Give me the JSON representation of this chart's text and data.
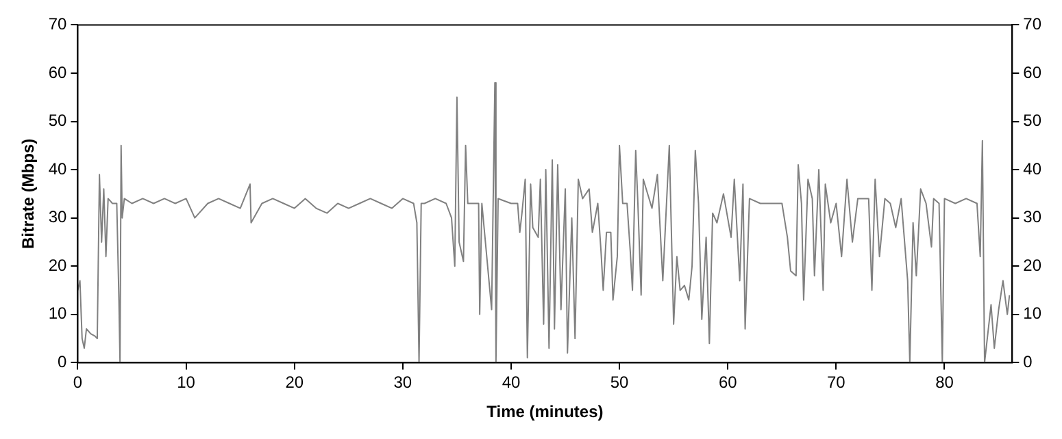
{
  "chart_data": {
    "type": "line",
    "xlabel": "Time (minutes)",
    "ylabel": "Bitrate (Mbps)",
    "xlim": [
      0,
      86.25
    ],
    "xticks": [
      0,
      10,
      20,
      30,
      40,
      50,
      60,
      70,
      80
    ],
    "ylim": [
      0,
      70
    ],
    "yticks": [
      0,
      10,
      20,
      30,
      40,
      50,
      60,
      70
    ],
    "y2lim": [
      0,
      70
    ],
    "y2ticks": [
      0,
      10,
      20,
      30,
      40,
      50,
      60,
      70
    ],
    "grid": false,
    "legend": false,
    "marker": "none",
    "line_style": "solid",
    "series": [
      {
        "color": "#808080",
        "x": [
          0,
          0.2,
          0.4,
          0.6,
          0.8,
          1.2,
          1.6,
          1.8,
          2.0,
          2.2,
          2.4,
          2.6,
          2.8,
          3.2,
          3.6,
          3.8,
          3.9,
          4.0,
          4.1,
          4.3,
          5,
          6,
          7,
          8,
          9,
          10,
          10.8,
          11.2,
          12,
          13,
          14,
          15,
          15.9,
          16,
          17,
          18,
          19,
          20,
          21,
          22,
          23,
          24,
          25,
          26,
          27,
          28,
          29,
          30,
          31,
          31.3,
          31.5,
          31.7,
          32,
          33,
          34,
          34.5,
          34.8,
          35,
          35.2,
          35.6,
          35.8,
          36,
          37,
          37.1,
          37.3,
          38.2,
          38.5,
          38.6,
          38.8,
          40,
          40.6,
          40.8,
          41,
          41.3,
          41.5,
          41.8,
          42,
          42.5,
          42.7,
          43,
          43.2,
          43.5,
          43.8,
          44,
          44.3,
          44.6,
          45,
          45.2,
          45.6,
          45.9,
          46.2,
          46.6,
          47.2,
          47.5,
          48,
          48.3,
          48.5,
          48.8,
          49.2,
          49.4,
          49.8,
          50,
          50.3,
          50.7,
          51,
          51.2,
          51.5,
          51.7,
          52,
          52.2,
          53,
          53.5,
          54,
          54.3,
          54.6,
          55,
          55.3,
          55.6,
          56,
          56.4,
          56.7,
          57,
          57.3,
          57.6,
          58,
          58.3,
          58.6,
          59,
          59.6,
          60.3,
          60.6,
          61.1,
          61.4,
          61.6,
          62,
          63,
          64,
          65,
          65.5,
          65.8,
          66.3,
          66.5,
          66.8,
          67,
          67.4,
          67.8,
          68,
          68.4,
          68.8,
          69,
          69.5,
          70,
          70.5,
          71,
          71.5,
          72,
          73,
          73.3,
          73.6,
          74,
          74.5,
          75,
          75.5,
          76,
          76.6,
          76.8,
          77.1,
          77.4,
          77.8,
          78.3,
          78.8,
          79,
          79.5,
          79.8,
          80,
          81,
          82,
          83,
          83.3,
          83.5,
          83.7,
          83.9,
          84.3,
          84.6,
          85,
          85.4,
          85.8,
          86
        ],
        "values": [
          15,
          17,
          5,
          3,
          7,
          6,
          5.5,
          5,
          39,
          25,
          36,
          22,
          34,
          33,
          33,
          13,
          0,
          45,
          30,
          34,
          33,
          34,
          33,
          34,
          33,
          34,
          30,
          31,
          33,
          34,
          33,
          32,
          37,
          29,
          33,
          34,
          33,
          32,
          34,
          32,
          31,
          33,
          32,
          33,
          34,
          33,
          32,
          34,
          33,
          29,
          0,
          33,
          33,
          34,
          33,
          30,
          20,
          55,
          25,
          21,
          45,
          33,
          33,
          10,
          33,
          11,
          58,
          0,
          34,
          33,
          33,
          27,
          31,
          38,
          1,
          37,
          28,
          26,
          38,
          8,
          40,
          3,
          42,
          7,
          41,
          11,
          36,
          2,
          30,
          5,
          38,
          34,
          36,
          27,
          33,
          23,
          15,
          27,
          27,
          13,
          22,
          45,
          33,
          33,
          23,
          15,
          44,
          33,
          14,
          38,
          32,
          39,
          17,
          31,
          45,
          8,
          22,
          15,
          16,
          13,
          20,
          44,
          33,
          9,
          26,
          4,
          31,
          29,
          35,
          26,
          38,
          17,
          37,
          7,
          34,
          33,
          33,
          33,
          26,
          19,
          18,
          41,
          33,
          13,
          38,
          34,
          18,
          40,
          15,
          37,
          29,
          33,
          22,
          38,
          25,
          34,
          34,
          15,
          38,
          22,
          34,
          33,
          28,
          34,
          17,
          0,
          29,
          18,
          36,
          33,
          24,
          34,
          33,
          0,
          34,
          33,
          34,
          33,
          22,
          46,
          0,
          4,
          12,
          3,
          11,
          17,
          10,
          14
        ]
      }
    ]
  }
}
